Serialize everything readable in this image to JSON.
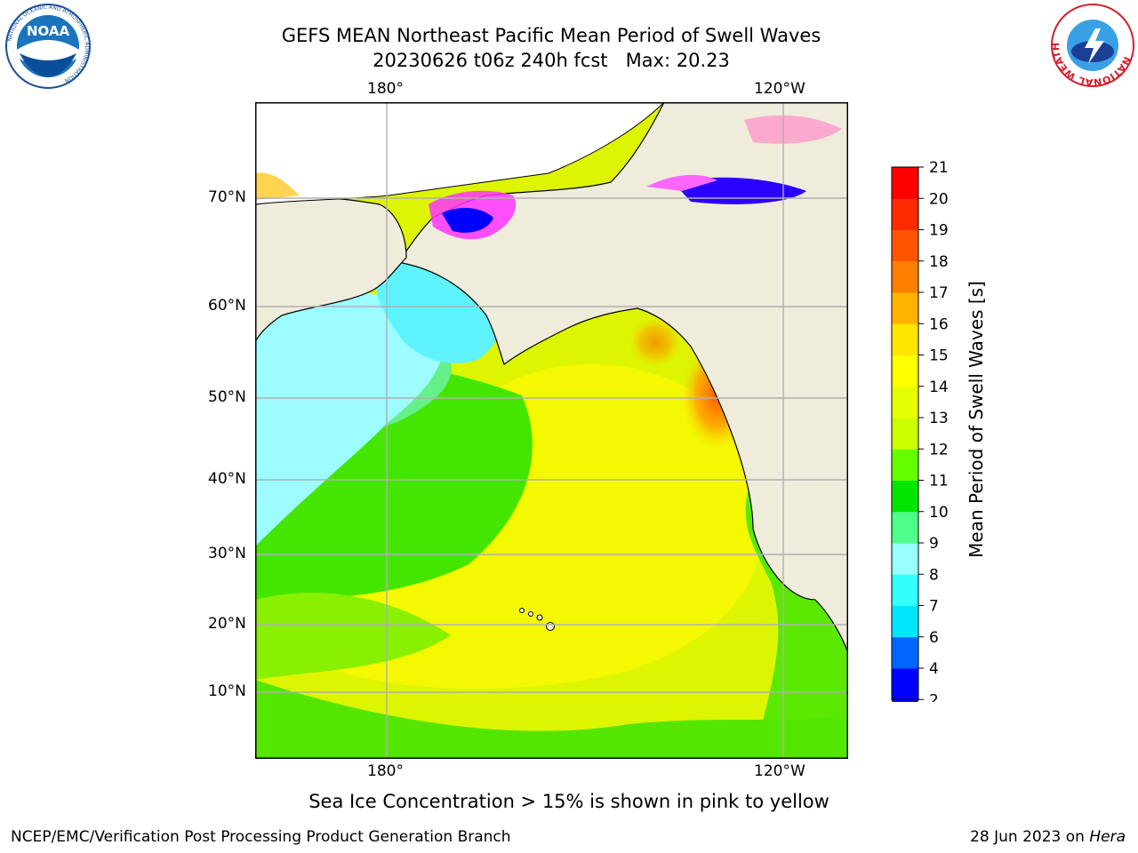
{
  "header": {
    "title_line1": "GEFS MEAN Northeast Pacific Mean Period of Swell Waves",
    "title_line2": "20230626 t06z 240h fcst   Max: 20.23"
  },
  "map": {
    "region": "Northeast Pacific",
    "top_longitude_labels": [
      "180°",
      "120°W"
    ],
    "bottom_longitude_labels": [
      "180°",
      "120°W"
    ],
    "latitude_labels": [
      "70°N",
      "60°N",
      "50°N",
      "40°N",
      "30°N",
      "20°N",
      "10°N"
    ],
    "land_color": "#efecdc",
    "grid_color": "#b0b0b0"
  },
  "colorbar": {
    "label": "Mean Period of Swell Waves [s]",
    "ticks": [
      "2",
      "4",
      "6",
      "7",
      "8",
      "9",
      "10",
      "11",
      "12",
      "13",
      "14",
      "15",
      "16",
      "17",
      "18",
      "19",
      "20",
      "21"
    ],
    "colors": [
      "#0000ff",
      "#0066ff",
      "#00e6ff",
      "#33ffff",
      "#99ffff",
      "#4dff88",
      "#00e600",
      "#66ff00",
      "#ccff00",
      "#e6ff00",
      "#ffff00",
      "#ffe600",
      "#ffb300",
      "#ff8000",
      "#ff5500",
      "#ff2a00",
      "#ff0000"
    ]
  },
  "notes": {
    "ice": "Sea Ice Concentration > 15% is shown in pink to yellow"
  },
  "footer": {
    "left": "NCEP/EMC/Verification Post Processing Product Generation Branch",
    "right_date": "28 Jun 2023 on",
    "right_machine": "Hera"
  },
  "logos": {
    "noaa_text": "NOAA",
    "noaa_ring_text": "NATIONAL OCEANIC AND ATMOSPHERIC ADMINISTRATION",
    "noaa_ring_bottom": "U.S. DEPARTMENT OF COMMERCE",
    "nws_ring_text": "NATIONAL WEATHER SERVICE"
  }
}
